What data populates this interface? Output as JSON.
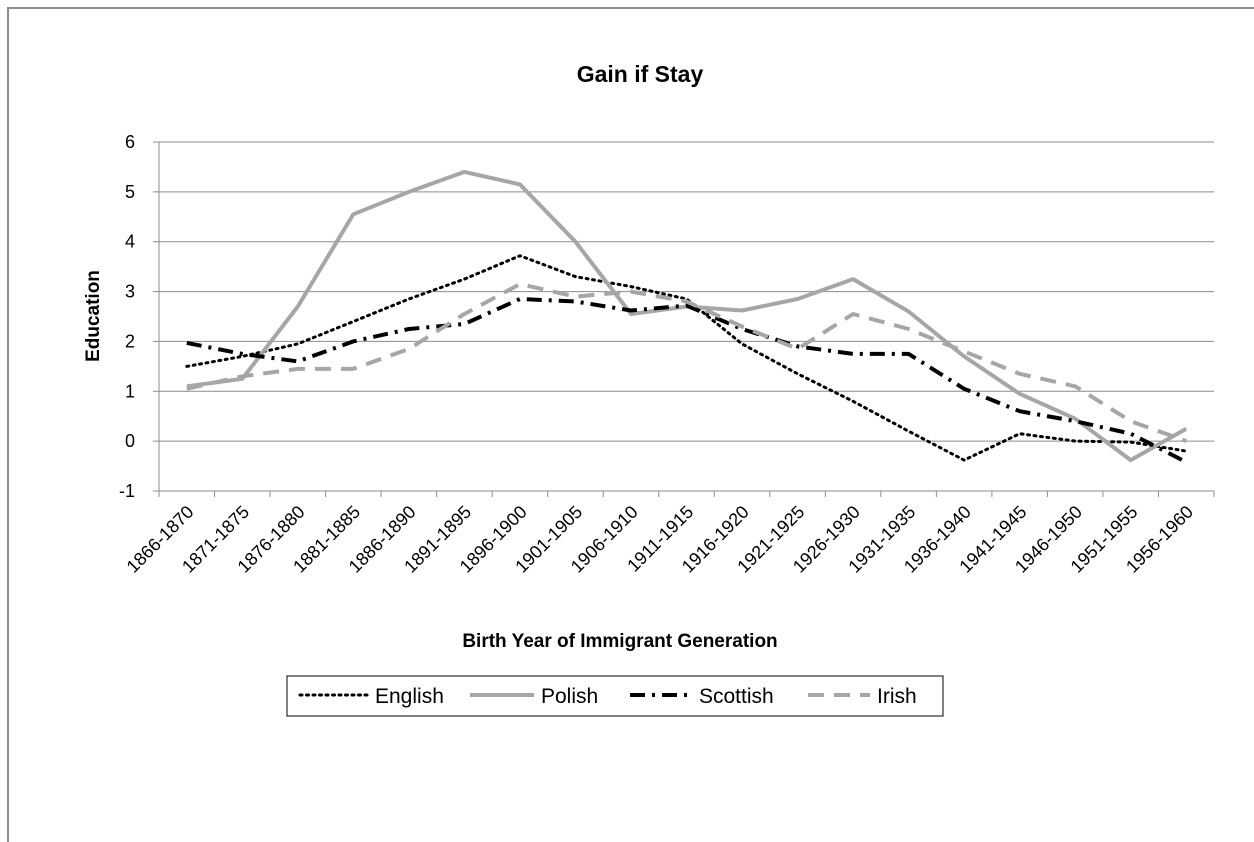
{
  "chart_data": {
    "type": "line",
    "title": "Gain if Stay",
    "xlabel": "Birth Year of Immigrant Generation",
    "ylabel": "Education",
    "ylim": [
      -1,
      6
    ],
    "yticks": [
      -1,
      0,
      1,
      2,
      3,
      4,
      5,
      6
    ],
    "grid": true,
    "legend_position": "bottom",
    "categories": [
      "1866-1870",
      "1871-1875",
      "1876-1880",
      "1881-1885",
      "1886-1890",
      "1891-1895",
      "1896-1900",
      "1901-1905",
      "1906-1910",
      "1911-1915",
      "1916-1920",
      "1921-1925",
      "1926-1930",
      "1931-1935",
      "1936-1940",
      "1941-1945",
      "1946-1950",
      "1951-1955",
      "1956-1960"
    ],
    "series": [
      {
        "name": "English",
        "color": "#000000",
        "style": "dotted",
        "values": [
          1.5,
          1.7,
          1.95,
          2.4,
          2.85,
          3.25,
          3.72,
          3.3,
          3.1,
          2.85,
          1.95,
          1.35,
          0.8,
          0.2,
          -0.38,
          0.15,
          0.0,
          -0.02,
          -0.2
        ]
      },
      {
        "name": "Polish",
        "color": "#a6a6a6",
        "style": "solid",
        "values": [
          1.1,
          1.25,
          2.7,
          4.55,
          5.0,
          5.4,
          5.15,
          4.0,
          2.55,
          2.7,
          2.62,
          2.85,
          3.25,
          2.6,
          1.7,
          0.95,
          0.45,
          -0.38,
          0.25
        ]
      },
      {
        "name": "Scottish",
        "color": "#000000",
        "style": "dashdot",
        "values": [
          1.97,
          1.75,
          1.6,
          2.0,
          2.25,
          2.35,
          2.85,
          2.8,
          2.62,
          2.72,
          2.25,
          1.9,
          1.75,
          1.75,
          1.05,
          0.6,
          0.4,
          0.15,
          -0.42
        ]
      },
      {
        "name": "Irish",
        "color": "#a6a6a6",
        "style": "dashed",
        "values": [
          1.05,
          1.3,
          1.45,
          1.45,
          1.85,
          2.55,
          3.15,
          2.9,
          3.0,
          2.8,
          2.3,
          1.85,
          2.55,
          2.25,
          1.8,
          1.35,
          1.1,
          0.4,
          0.0
        ]
      }
    ]
  }
}
